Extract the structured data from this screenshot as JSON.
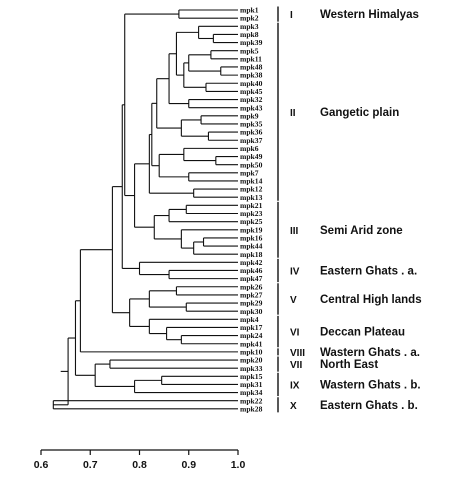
{
  "leaves": [
    "mpk1",
    "mpk2",
    "mpk3",
    "mpk8",
    "mpk39",
    "mpk5",
    "mpk11",
    "mpk48",
    "mpk38",
    "mpk40",
    "mpk45",
    "mpk32",
    "mpk43",
    "mpk9",
    "mpk35",
    "mpk36",
    "mpk37",
    "mpk6",
    "mpk49",
    "mpk50",
    "mpk7",
    "mpk14",
    "mpk12",
    "mpk13",
    "mpk21",
    "mpk23",
    "mpk25",
    "mpk19",
    "mpk16",
    "mpk44",
    "mpk18",
    "mpk42",
    "mpk46",
    "mpk47",
    "mpk26",
    "mpk27",
    "mpk29",
    "mpk30",
    "mpk4",
    "mpk17",
    "mpk24",
    "mpk41",
    "mpk10",
    "mpk20",
    "mpk33",
    "mpk15",
    "mpk31",
    "mpk34",
    "mpk22",
    "mpk28"
  ],
  "groups": [
    {
      "roman": "I",
      "name": "Western Himalyas",
      "first": 0,
      "last": 1
    },
    {
      "roman": "II",
      "name": "Gangetic plain",
      "first": 2,
      "last": 23
    },
    {
      "roman": "III",
      "name": "Semi Arid zone",
      "first": 24,
      "last": 30
    },
    {
      "roman": "IV",
      "name": "Eastern Ghats . a.",
      "first": 31,
      "last": 33
    },
    {
      "roman": "V",
      "name": "Central High lands",
      "first": 34,
      "last": 37
    },
    {
      "roman": "VI",
      "name": "Deccan Plateau",
      "first": 38,
      "last": 41
    },
    {
      "roman": "VIII",
      "name": "Wastern Ghats . a.",
      "first": 42,
      "last": 42
    },
    {
      "roman": "VII",
      "name": "North East",
      "first": 43,
      "last": 44
    },
    {
      "roman": "IX",
      "name": "Wastern Ghats . b.",
      "first": 45,
      "last": 47
    },
    {
      "roman": "X",
      "name": "Eastern Ghats . b.",
      "first": 48,
      "last": 49
    }
  ],
  "axis": {
    "min": 0.6,
    "max": 1.0,
    "ticks": [
      0.6,
      0.7,
      0.8,
      0.9,
      1.0
    ],
    "tick_labels": [
      "0.6",
      "0.7",
      "0.8",
      "0.9",
      "1.0"
    ]
  },
  "tree": {
    "h": 0.64,
    "c": [
      {
        "h": 0.655,
        "c": [
          {
            "h": 0.67,
            "c": [
              {
                "h": 0.68,
                "c": [
                  {
                    "h": 0.745,
                    "c": [
                      {
                        "h": 0.765,
                        "c": [
                          {
                            "h": 0.77,
                            "c": [
                              {
                                "h": 0.88,
                                "c": [
                                  0,
                                  1
                                ]
                              },
                              {
                                "h": 0.79,
                                "c": [
                                  {
                                    "h": 0.82,
                                    "c": [
                                      {
                                        "h": 0.825,
                                        "c": [
                                          {
                                            "h": 0.835,
                                            "c": [
                                              {
                                                "h": 0.86,
                                                "c": [
                                                  {
                                                    "h": 0.875,
                                                    "c": [
                                                      {
                                                        "h": 0.92,
                                                        "c": [
                                                          2,
                                                          {
                                                            "h": 0.95,
                                                            "c": [
                                                              3,
                                                              4
                                                            ]
                                                          }
                                                        ]
                                                      },
                                                      {
                                                        "h": 0.89,
                                                        "c": [
                                                          {
                                                            "h": 0.9,
                                                            "c": [
                                                              {
                                                                "h": 0.945,
                                                                "c": [
                                                                  5,
                                                                  6
                                                                ]
                                                              },
                                                              {
                                                                "h": 0.965,
                                                                "c": [
                                                                  7,
                                                                  8
                                                                ]
                                                              }
                                                            ]
                                                          },
                                                          {
                                                            "h": 0.935,
                                                            "c": [
                                                              9,
                                                              10
                                                            ]
                                                          }
                                                        ]
                                                      }
                                                    ]
                                                  },
                                                  {
                                                    "h": 0.9,
                                                    "c": [
                                                      11,
                                                      12
                                                    ]
                                                  }
                                                ]
                                              },
                                              {
                                                "h": 0.885,
                                                "c": [
                                                  {
                                                    "h": 0.925,
                                                    "c": [
                                                      13,
                                                      14
                                                    ]
                                                  },
                                                  {
                                                    "h": 0.94,
                                                    "c": [
                                                      15,
                                                      16
                                                    ]
                                                  }
                                                ]
                                              }
                                            ]
                                          },
                                          {
                                            "h": 0.84,
                                            "c": [
                                              {
                                                "h": 0.89,
                                                "c": [
                                                  17,
                                                  {
                                                    "h": 0.955,
                                                    "c": [
                                                      18,
                                                      19
                                                    ]
                                                  }
                                                ]
                                              },
                                              {
                                                "h": 0.9,
                                                "c": [
                                                  20,
                                                  21
                                                ]
                                              }
                                            ]
                                          }
                                        ]
                                      },
                                      {
                                        "h": 0.91,
                                        "c": [
                                          22,
                                          23
                                        ]
                                      }
                                    ]
                                  },
                                  {
                                    "h": 0.83,
                                    "c": [
                                      {
                                        "h": 0.86,
                                        "c": [
                                          {
                                            "h": 0.895,
                                            "c": [
                                              24,
                                              25
                                            ]
                                          },
                                          26
                                        ]
                                      },
                                      {
                                        "h": 0.885,
                                        "c": [
                                          27,
                                          {
                                            "h": 0.91,
                                            "c": [
                                              {
                                                "h": 0.93,
                                                "c": [
                                                  28,
                                                  29
                                                ]
                                              },
                                              30
                                            ]
                                          }
                                        ]
                                      }
                                    ]
                                  }
                                ]
                              }
                            ]
                          },
                          {
                            "h": 0.8,
                            "c": [
                              31,
                              {
                                "h": 0.86,
                                "c": [
                                  32,
                                  33
                                ]
                              }
                            ]
                          }
                        ]
                      },
                      {
                        "h": 0.78,
                        "c": [
                          {
                            "h": 0.82,
                            "c": [
                              {
                                "h": 0.875,
                                "c": [
                                  34,
                                  35
                                ]
                              },
                              {
                                "h": 0.895,
                                "c": [
                                  36,
                                  37
                                ]
                              }
                            ]
                          },
                          {
                            "h": 0.82,
                            "c": [
                              38,
                              {
                                "h": 0.855,
                                "c": [
                                  39,
                                  {
                                    "h": 0.885,
                                    "c": [
                                      40,
                                      41
                                    ]
                                  }
                                ]
                              }
                            ]
                          }
                        ]
                      }
                    ]
                  },
                  42
                ]
              },
              {
                "h": 0.71,
                "c": [
                  {
                    "h": 0.74,
                    "c": [
                      43,
                      44
                    ]
                  },
                  {
                    "h": 0.79,
                    "c": [
                      {
                        "h": 0.845,
                        "c": [
                          45,
                          46
                        ]
                      },
                      47
                    ]
                  }
                ]
              }
            ]
          },
          {
            "h": 0.625,
            "c": [
              48,
              49
            ]
          }
        ]
      },
      {
        "h": 0.625,
        "c": [
          48,
          49
        ]
      }
    ]
  }
}
